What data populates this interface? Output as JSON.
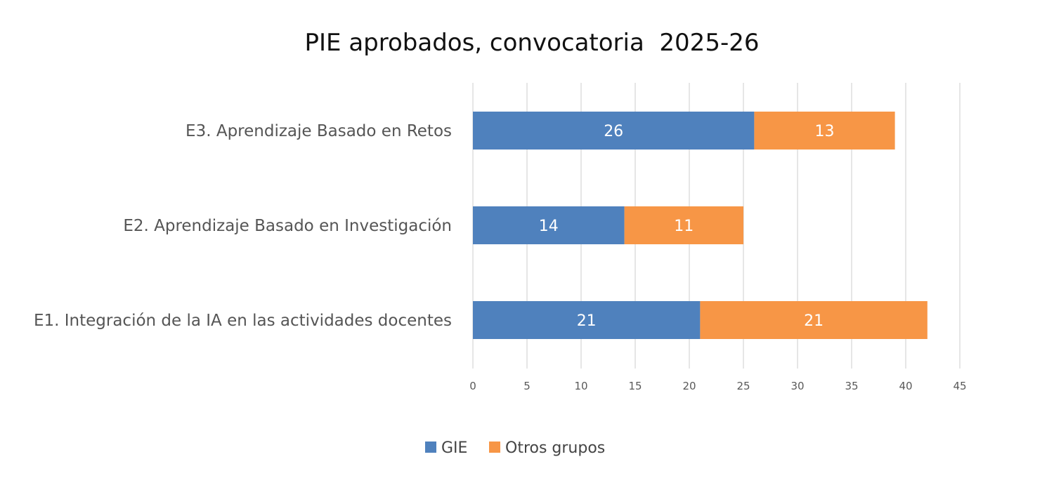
{
  "chart_data": {
    "type": "bar",
    "orientation": "horizontal",
    "stacked": true,
    "title": "PIE aprobados, convocatoria  2025-26",
    "xlabel": "",
    "ylabel": "",
    "categories": [
      "E3. Aprendizaje Basado en Retos",
      "E2. Aprendizaje Basado en Investigación",
      "E1. Integración de la IA en las actividades docentes"
    ],
    "series": [
      {
        "name": "GIE",
        "color": "#4f81bd",
        "values": [
          26,
          14,
          21
        ]
      },
      {
        "name": "Otros grupos",
        "color": "#f79646",
        "values": [
          13,
          11,
          21
        ]
      }
    ],
    "xlim": [
      0,
      45
    ],
    "xticks": [
      0,
      5,
      10,
      15,
      20,
      25,
      30,
      35,
      40,
      45
    ],
    "grid": true,
    "data_labels": true,
    "legend_position": "bottom"
  }
}
